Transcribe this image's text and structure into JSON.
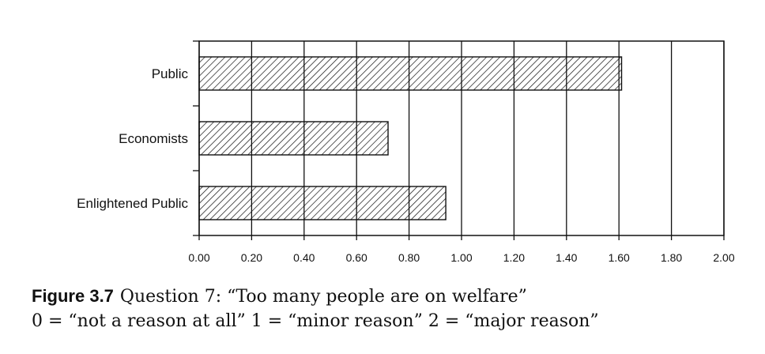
{
  "chart_data": {
    "type": "bar",
    "orientation": "horizontal",
    "categories": [
      "Public",
      "Economists",
      "Enlightened Public"
    ],
    "values": [
      1.61,
      0.72,
      0.94
    ],
    "xlim": [
      0,
      2
    ],
    "x_ticks": [
      "0.00",
      "0.20",
      "0.40",
      "0.60",
      "0.80",
      "1.00",
      "1.20",
      "1.40",
      "1.60",
      "1.80",
      "2.00"
    ],
    "grid": "vertical",
    "fill": "diagonal-hatch"
  },
  "caption": {
    "figure_label": "Figure 3.7",
    "title": "Question 7: “Too many people are on welfare”",
    "scale_note": "0 = “not a reason at all” 1 = “minor reason” 2 = “major reason”"
  },
  "colors": {
    "ink": "#111111",
    "background": "#ffffff"
  }
}
